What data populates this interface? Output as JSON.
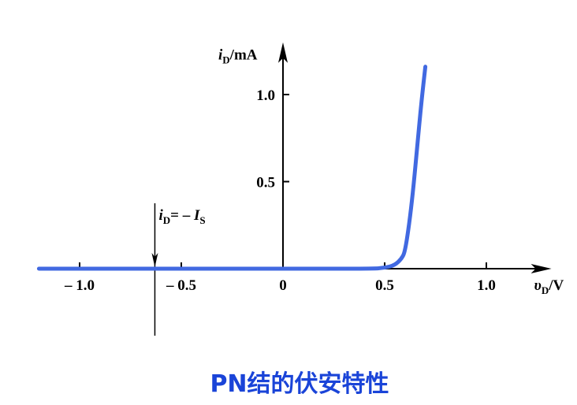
{
  "chart_data": {
    "type": "line",
    "title": "PN结的伏安特性",
    "xlabel_var": "υ",
    "xlabel_sub": "D",
    "xlabel_unit": "/V",
    "ylabel_var": "i",
    "ylabel_sub": "D",
    "ylabel_unit": "/mA",
    "x_ticks": [
      {
        "value": -1.0,
        "label": "– 1.0"
      },
      {
        "value": -0.5,
        "label": "– 0.5"
      },
      {
        "value": 0,
        "label": "0"
      },
      {
        "value": 0.5,
        "label": "0.5"
      },
      {
        "value": 1.0,
        "label": "1.0"
      }
    ],
    "y_ticks": [
      {
        "value": 0.5,
        "label": "0.5"
      },
      {
        "value": 1.0,
        "label": "1.0"
      }
    ],
    "series": [
      {
        "color": "#4169e1",
        "points": [
          [
            -1.2,
            0
          ],
          [
            0.0,
            0
          ],
          [
            0.44,
            0
          ],
          [
            0.5,
            0.005
          ],
          [
            0.55,
            0.02
          ],
          [
            0.585,
            0.06
          ],
          [
            0.6,
            0.1
          ],
          [
            0.62,
            0.25
          ],
          [
            0.64,
            0.45
          ],
          [
            0.66,
            0.7
          ],
          [
            0.68,
            0.95
          ],
          [
            0.7,
            1.16
          ]
        ]
      }
    ],
    "annotation": {
      "x_value": -0.63,
      "label_var": "i",
      "label_sub": "D",
      "label_mid": "= – ",
      "label_var2": "I",
      "label_sub2": "S"
    },
    "xlim": [
      -1.2,
      1.32
    ],
    "ylim": [
      -0.37,
      1.3
    ]
  },
  "colors": {
    "curve": "#4169e1",
    "caption": "#1a44d8",
    "axis": "#000000"
  }
}
